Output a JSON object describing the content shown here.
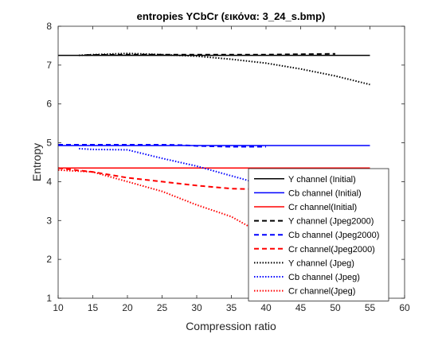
{
  "chart_data": {
    "type": "line",
    "title": "entropies YCbCr (εικόνα: 3_24_s.bmp)",
    "xlabel": "Compression ratio",
    "ylabel": "Entropy",
    "xlim": [
      10,
      60
    ],
    "ylim": [
      1,
      8
    ],
    "xticks": [
      "10",
      "15",
      "20",
      "25",
      "30",
      "35",
      "40",
      "45",
      "50",
      "55",
      "60"
    ],
    "yticks": [
      "1",
      "2",
      "3",
      "4",
      "5",
      "6",
      "7",
      "8"
    ],
    "grid": false,
    "legend_position": "bottom-right",
    "series": [
      {
        "name": "Y channel (Initial)",
        "color": "#000000",
        "style": "solid",
        "x": [
          10,
          55
        ],
        "y": [
          7.25,
          7.25
        ]
      },
      {
        "name": "Cb channel (Initial)",
        "color": "#0000ff",
        "style": "solid",
        "x": [
          10,
          55
        ],
        "y": [
          4.93,
          4.93
        ]
      },
      {
        "name": "Cr channel(Initial)",
        "color": "#ff0000",
        "style": "solid",
        "x": [
          10,
          55
        ],
        "y": [
          4.35,
          4.35
        ]
      },
      {
        "name": "Y channel (Jpeg2000)",
        "color": "#000000",
        "style": "dashed",
        "x": [
          14,
          20,
          25,
          30,
          35,
          40,
          45,
          50
        ],
        "y": [
          7.26,
          7.27,
          7.27,
          7.27,
          7.27,
          7.27,
          7.28,
          7.29
        ]
      },
      {
        "name": "Cb channel (Jpeg2000)",
        "color": "#0000ff",
        "style": "dashed",
        "x": [
          10,
          15,
          20,
          25,
          28,
          30,
          35,
          40
        ],
        "y": [
          4.95,
          4.95,
          4.95,
          4.95,
          4.94,
          4.92,
          4.9,
          4.9
        ]
      },
      {
        "name": "Cr channel(Jpeg2000)",
        "color": "#ff0000",
        "style": "dashed",
        "x": [
          10,
          15,
          20,
          25,
          30,
          35,
          40
        ],
        "y": [
          4.35,
          4.25,
          4.1,
          4.0,
          3.9,
          3.82,
          3.8
        ]
      },
      {
        "name": "Y channel (Jpeg)",
        "color": "#000000",
        "style": "dotted",
        "x": [
          13,
          15,
          20,
          25,
          30,
          35,
          40,
          45,
          50,
          55
        ],
        "y": [
          7.25,
          7.27,
          7.3,
          7.27,
          7.23,
          7.15,
          7.05,
          6.9,
          6.72,
          6.5
        ]
      },
      {
        "name": "Cb channel (Jpeg)",
        "color": "#0000ff",
        "style": "dotted",
        "x": [
          13,
          15,
          20,
          25,
          30,
          35,
          38
        ],
        "y": [
          4.85,
          4.83,
          4.82,
          4.6,
          4.4,
          4.15,
          4.0
        ]
      },
      {
        "name": "Cr channel(Jpeg)",
        "color": "#ff0000",
        "style": "dotted",
        "x": [
          10,
          15,
          20,
          25,
          30,
          35,
          38
        ],
        "y": [
          4.3,
          4.25,
          4.0,
          3.75,
          3.4,
          3.1,
          2.8
        ]
      }
    ]
  }
}
